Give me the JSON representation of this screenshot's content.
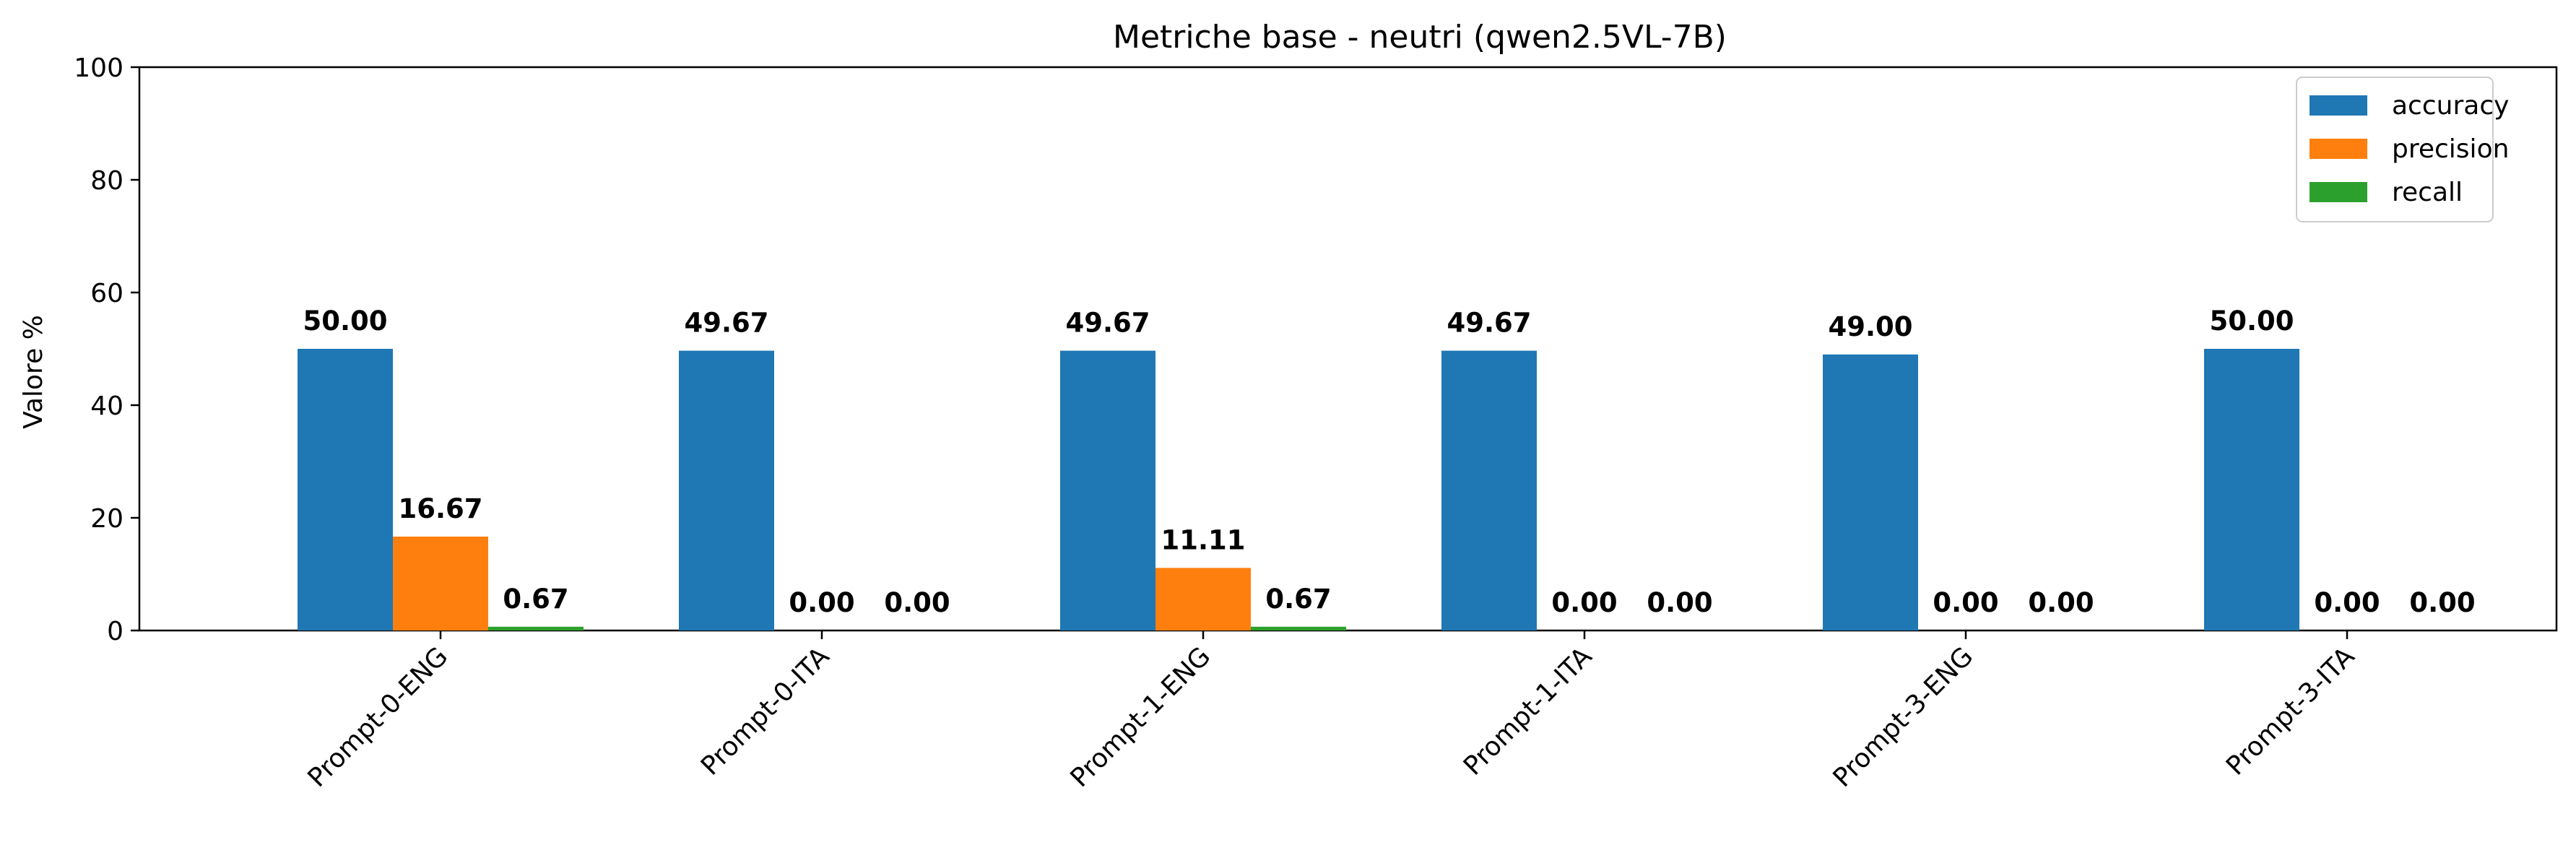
{
  "chart_data": {
    "type": "bar",
    "title": "Metriche base - neutri (qwen2.5VL-7B)",
    "xlabel": "",
    "ylabel": "Valore %",
    "ylim": [
      0,
      100
    ],
    "yticks": [
      0,
      20,
      40,
      60,
      80,
      100
    ],
    "categories": [
      "Prompt-0-ENG",
      "Prompt-0-ITA",
      "Prompt-1-ENG",
      "Prompt-1-ITA",
      "Prompt-3-ENG",
      "Prompt-3-ITA"
    ],
    "series": [
      {
        "name": "accuracy",
        "color": "#1f77b4",
        "values": [
          50.0,
          49.67,
          49.67,
          49.67,
          49.0,
          50.0
        ]
      },
      {
        "name": "precision",
        "color": "#ff7f0e",
        "values": [
          16.67,
          0.0,
          11.11,
          0.0,
          0.0,
          0.0
        ]
      },
      {
        "name": "recall",
        "color": "#2ca02c",
        "values": [
          0.67,
          0.0,
          0.67,
          0.0,
          0.0,
          0.0
        ]
      }
    ],
    "legend_position": "top-right",
    "grid": false,
    "value_label_decimals": 2
  }
}
